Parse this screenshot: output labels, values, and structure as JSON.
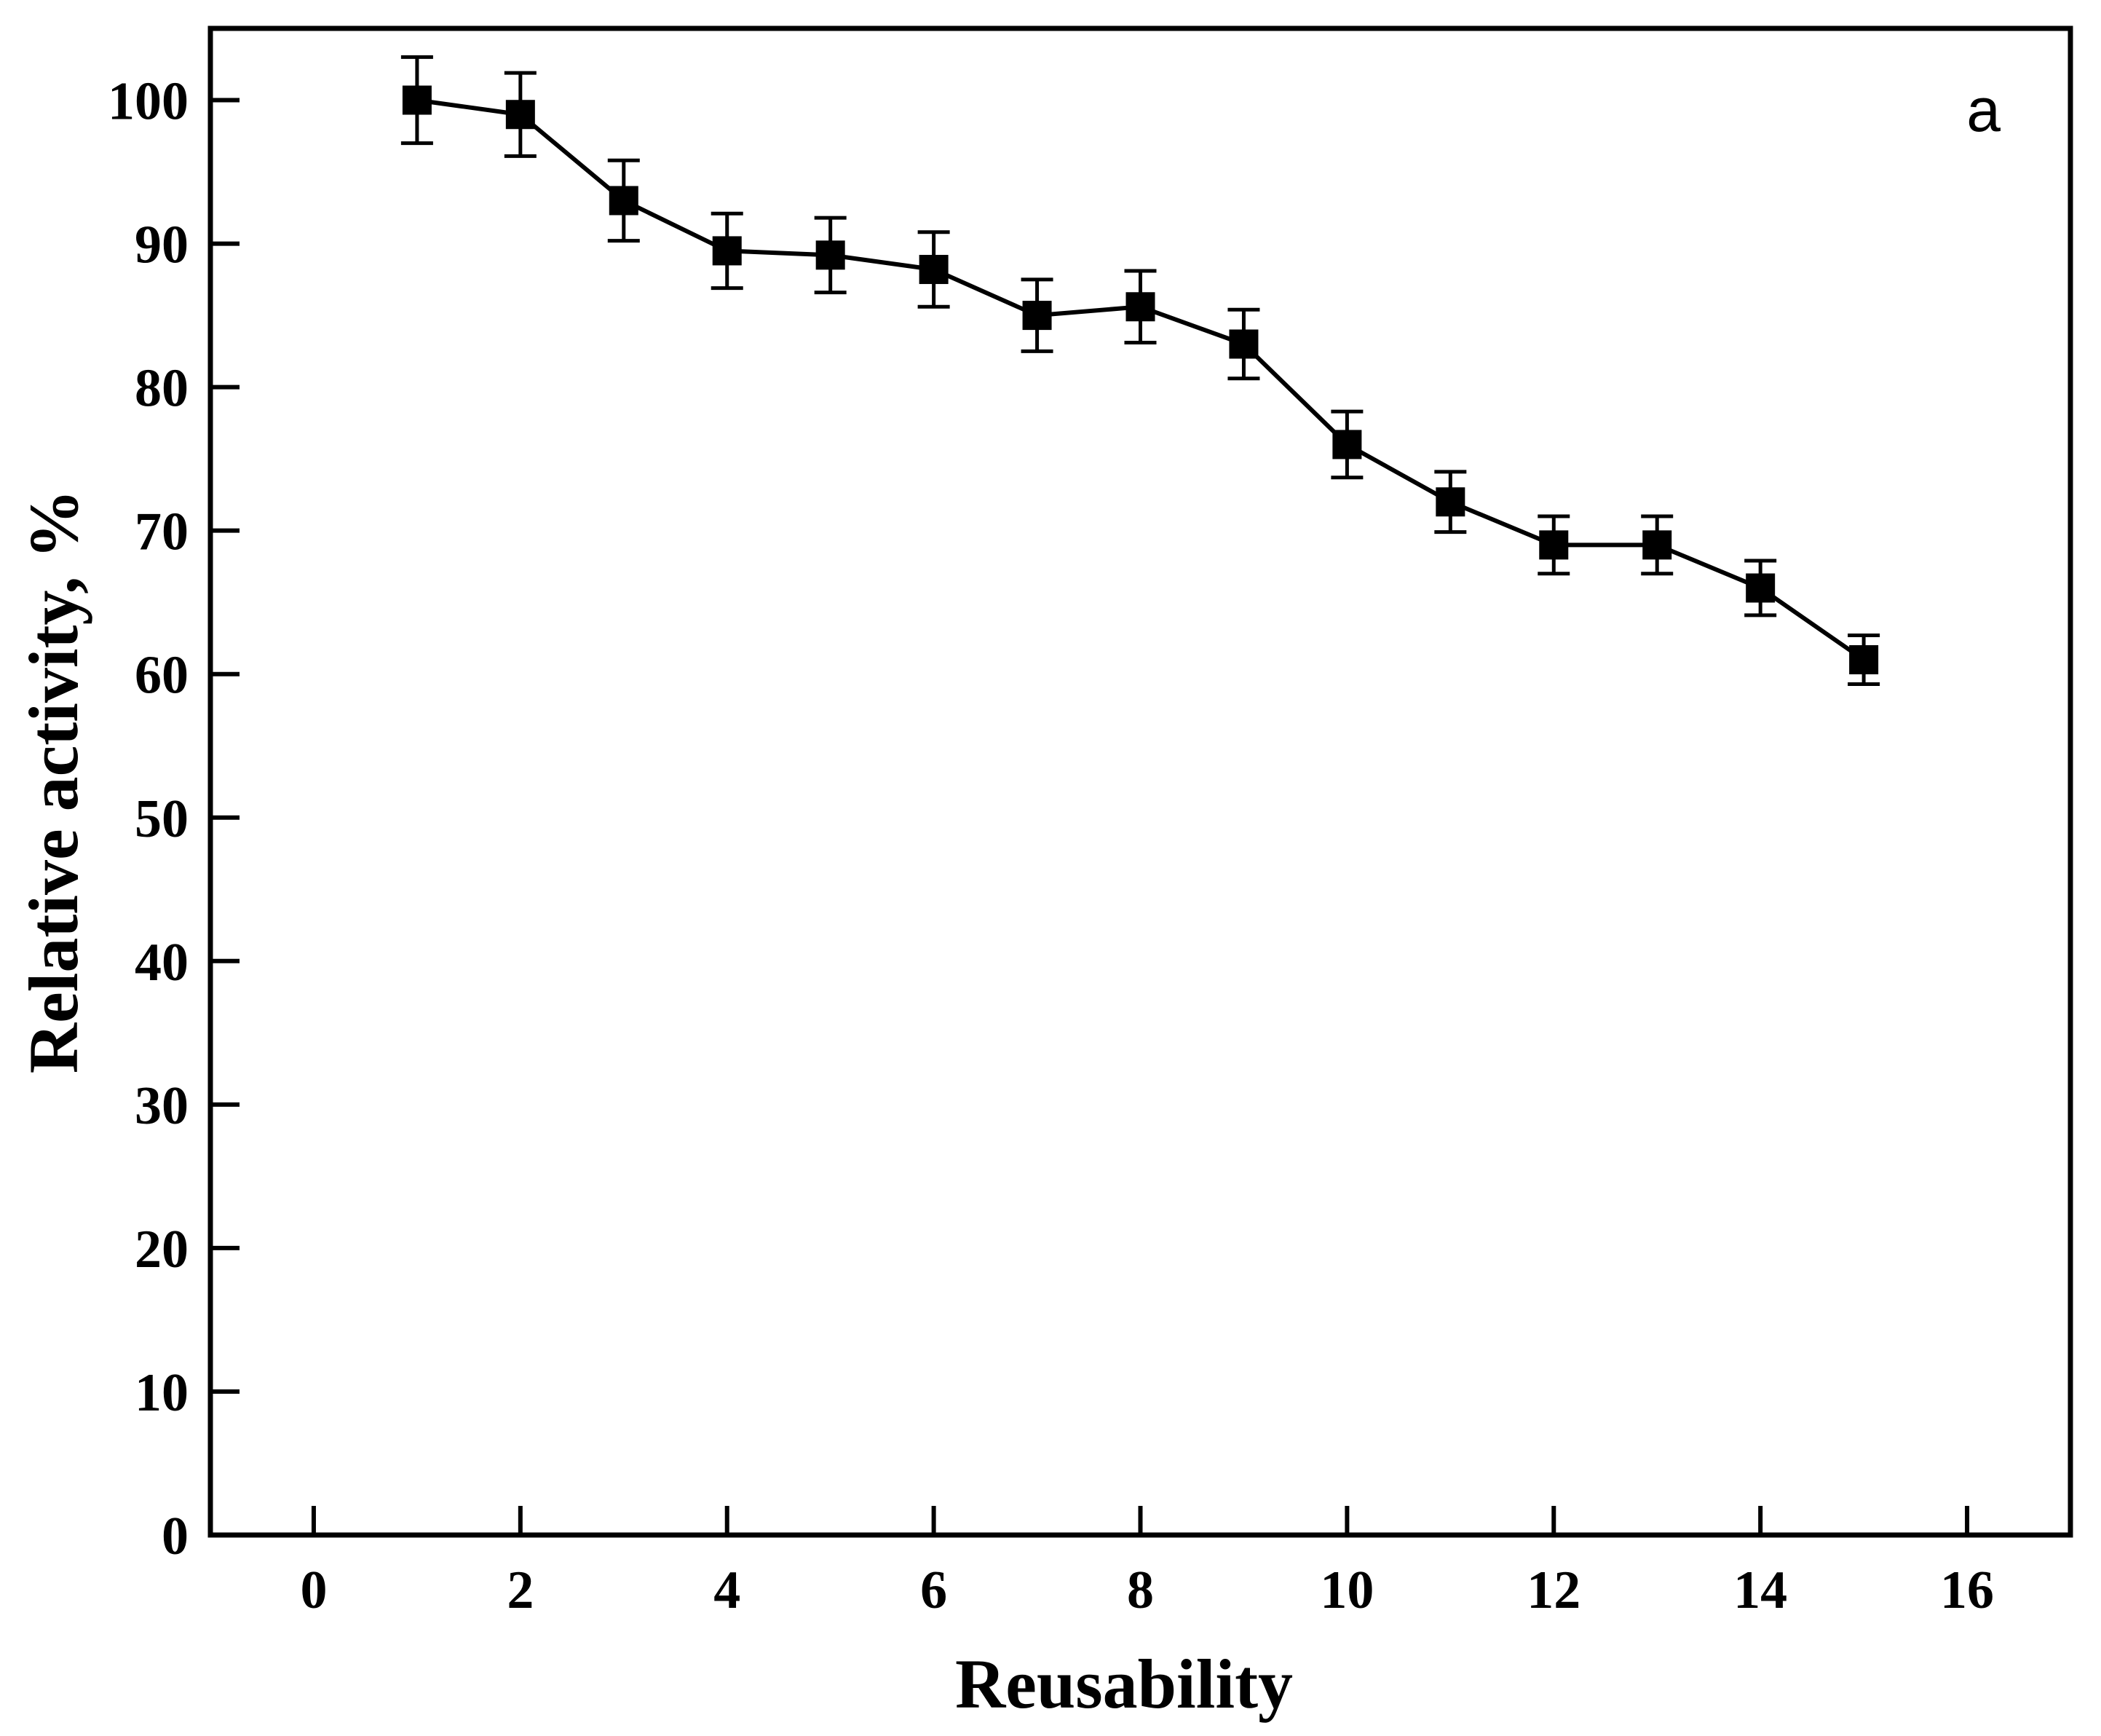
{
  "chart_data": {
    "type": "line",
    "title": "",
    "panel_label": "a",
    "xlabel": "Reusability",
    "ylabel": "Relative activity, %",
    "xlim": [
      -1,
      17
    ],
    "ylim": [
      0,
      105
    ],
    "xticks": [
      0,
      2,
      4,
      6,
      8,
      10,
      12,
      14,
      16
    ],
    "yticks": [
      0,
      10,
      20,
      30,
      40,
      50,
      60,
      70,
      80,
      90,
      100
    ],
    "grid": false,
    "legend": "none",
    "marker": "square",
    "line_color": "#000000",
    "series": [
      {
        "x": [
          1,
          2,
          3,
          4,
          5,
          6,
          7,
          8,
          9,
          10,
          11,
          12,
          13,
          14,
          15
        ],
        "values": [
          100,
          99,
          93,
          89.5,
          89.2,
          88.2,
          85,
          85.6,
          83,
          76,
          72,
          69,
          69,
          66,
          61
        ],
        "errors": [
          3,
          2.9,
          2.8,
          2.6,
          2.6,
          2.6,
          2.5,
          2.5,
          2.4,
          2.3,
          2.1,
          2,
          2,
          1.9,
          1.7
        ]
      }
    ]
  }
}
